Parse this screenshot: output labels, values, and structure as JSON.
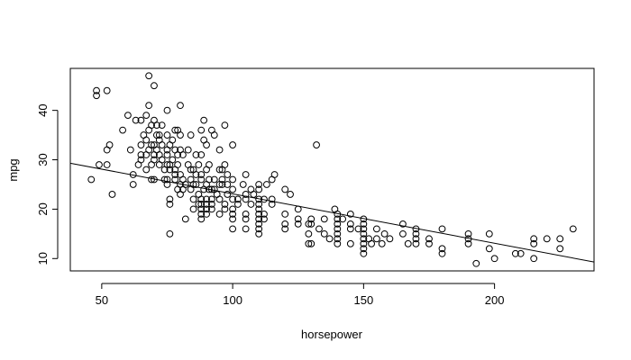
{
  "chart_data": {
    "type": "scatter",
    "title": "",
    "xlabel": "horsepower",
    "ylabel": "mpg",
    "xlim": [
      38,
      238
    ],
    "ylim": [
      7.5,
      48.5
    ],
    "xticks": [
      50,
      100,
      150,
      200
    ],
    "yticks": [
      10,
      20,
      30,
      40
    ],
    "grid": false,
    "legend": "none",
    "marker": "open-circle",
    "regression_line": {
      "x": [
        38,
        238
      ],
      "y": [
        29.3,
        9.3
      ]
    },
    "points": [
      [
        46,
        26
      ],
      [
        48,
        43
      ],
      [
        48,
        44
      ],
      [
        49,
        29
      ],
      [
        52,
        44
      ],
      [
        52,
        29
      ],
      [
        52,
        32
      ],
      [
        53,
        33
      ],
      [
        54,
        23
      ],
      [
        58,
        36
      ],
      [
        60,
        39
      ],
      [
        61,
        32
      ],
      [
        62,
        27
      ],
      [
        62,
        25
      ],
      [
        63,
        38
      ],
      [
        64,
        29
      ],
      [
        65,
        33
      ],
      [
        65,
        38
      ],
      [
        65,
        31
      ],
      [
        65,
        30
      ],
      [
        66,
        35
      ],
      [
        67,
        39
      ],
      [
        67,
        31
      ],
      [
        67,
        28
      ],
      [
        67,
        34
      ],
      [
        68,
        47
      ],
      [
        68,
        41
      ],
      [
        68,
        32
      ],
      [
        68,
        36
      ],
      [
        69,
        29
      ],
      [
        69,
        37
      ],
      [
        69,
        33
      ],
      [
        69,
        26
      ],
      [
        70,
        45
      ],
      [
        70,
        38
      ],
      [
        70,
        33
      ],
      [
        70,
        30
      ],
      [
        70,
        26
      ],
      [
        70,
        31
      ],
      [
        71,
        35
      ],
      [
        71,
        37
      ],
      [
        71,
        32
      ],
      [
        72,
        35
      ],
      [
        72,
        29
      ],
      [
        72,
        34
      ],
      [
        72,
        31
      ],
      [
        73,
        37
      ],
      [
        73,
        33
      ],
      [
        73,
        30
      ],
      [
        74,
        26
      ],
      [
        74,
        28
      ],
      [
        75,
        32
      ],
      [
        75,
        29
      ],
      [
        75,
        35
      ],
      [
        75,
        31
      ],
      [
        75,
        40
      ],
      [
        75,
        26
      ],
      [
        75,
        25
      ],
      [
        76,
        22
      ],
      [
        76,
        21
      ],
      [
        76,
        15
      ],
      [
        76,
        28
      ],
      [
        76,
        29
      ],
      [
        76,
        33
      ],
      [
        77,
        30
      ],
      [
        77,
        34
      ],
      [
        78,
        32
      ],
      [
        78,
        27
      ],
      [
        78,
        36
      ],
      [
        78,
        28
      ],
      [
        78,
        26
      ],
      [
        79,
        31
      ],
      [
        79,
        36
      ],
      [
        79,
        29
      ],
      [
        79,
        24
      ],
      [
        80,
        41
      ],
      [
        80,
        35
      ],
      [
        80,
        32
      ],
      [
        80,
        27
      ],
      [
        80,
        23
      ],
      [
        80,
        25
      ],
      [
        81,
        31
      ],
      [
        81,
        26
      ],
      [
        81,
        24
      ],
      [
        82,
        18
      ],
      [
        82,
        25
      ],
      [
        83,
        32
      ],
      [
        83,
        29
      ],
      [
        84,
        28
      ],
      [
        84,
        26
      ],
      [
        84,
        24
      ],
      [
        84,
        35
      ],
      [
        85,
        28
      ],
      [
        85,
        25
      ],
      [
        85,
        22
      ],
      [
        85,
        20
      ],
      [
        86,
        27
      ],
      [
        86,
        31
      ],
      [
        86,
        25
      ],
      [
        87,
        29
      ],
      [
        87,
        23
      ],
      [
        87,
        21
      ],
      [
        88,
        36
      ],
      [
        88,
        31
      ],
      [
        88,
        26
      ],
      [
        88,
        21
      ],
      [
        88,
        18
      ],
      [
        88,
        20
      ],
      [
        88,
        22
      ],
      [
        88,
        19
      ],
      [
        88,
        27
      ],
      [
        89,
        38
      ],
      [
        89,
        34
      ],
      [
        89,
        24
      ],
      [
        90,
        25
      ],
      [
        90,
        28
      ],
      [
        90,
        33
      ],
      [
        90,
        22
      ],
      [
        90,
        21
      ],
      [
        90,
        19
      ],
      [
        90,
        20
      ],
      [
        91,
        26
      ],
      [
        91,
        24
      ],
      [
        91,
        29
      ],
      [
        92,
        36
      ],
      [
        92,
        22
      ],
      [
        92,
        24
      ],
      [
        92,
        21
      ],
      [
        92,
        20
      ],
      [
        93,
        35
      ],
      [
        93,
        26
      ],
      [
        93,
        24
      ],
      [
        94,
        23
      ],
      [
        95,
        25
      ],
      [
        95,
        19
      ],
      [
        95,
        28
      ],
      [
        95,
        22
      ],
      [
        95,
        32
      ],
      [
        96,
        28
      ],
      [
        96,
        26
      ],
      [
        96,
        25
      ],
      [
        97,
        37
      ],
      [
        97,
        29
      ],
      [
        97,
        21
      ],
      [
        97,
        20
      ],
      [
        98,
        27
      ],
      [
        98,
        23
      ],
      [
        98,
        25
      ],
      [
        100,
        26
      ],
      [
        100,
        24
      ],
      [
        100,
        22
      ],
      [
        100,
        18
      ],
      [
        100,
        20
      ],
      [
        100,
        19
      ],
      [
        100,
        16
      ],
      [
        100,
        33
      ],
      [
        102,
        22
      ],
      [
        102,
        21
      ],
      [
        104,
        25
      ],
      [
        105,
        27
      ],
      [
        105,
        22
      ],
      [
        105,
        23
      ],
      [
        105,
        19
      ],
      [
        105,
        18
      ],
      [
        105,
        16
      ],
      [
        107,
        24
      ],
      [
        107,
        21
      ],
      [
        108,
        23
      ],
      [
        110,
        22
      ],
      [
        110,
        21
      ],
      [
        110,
        20
      ],
      [
        110,
        19
      ],
      [
        110,
        18
      ],
      [
        110,
        17
      ],
      [
        110,
        16
      ],
      [
        110,
        15
      ],
      [
        110,
        24
      ],
      [
        110,
        25
      ],
      [
        112,
        22
      ],
      [
        112,
        19
      ],
      [
        112,
        18
      ],
      [
        113,
        25
      ],
      [
        115,
        26
      ],
      [
        115,
        22
      ],
      [
        115,
        21
      ],
      [
        116,
        27
      ],
      [
        120,
        24
      ],
      [
        120,
        19
      ],
      [
        120,
        17
      ],
      [
        120,
        16
      ],
      [
        122,
        23
      ],
      [
        125,
        20
      ],
      [
        125,
        18
      ],
      [
        125,
        17
      ],
      [
        129,
        17
      ],
      [
        129,
        15
      ],
      [
        129,
        13
      ],
      [
        130,
        18
      ],
      [
        130,
        17
      ],
      [
        130,
        13
      ],
      [
        132,
        33
      ],
      [
        133,
        16
      ],
      [
        135,
        18
      ],
      [
        135,
        15
      ],
      [
        137,
        14
      ],
      [
        139,
        20
      ],
      [
        140,
        19
      ],
      [
        140,
        18
      ],
      [
        140,
        17
      ],
      [
        140,
        16
      ],
      [
        140,
        15
      ],
      [
        140,
        14
      ],
      [
        140,
        13
      ],
      [
        142,
        18
      ],
      [
        145,
        19
      ],
      [
        145,
        17
      ],
      [
        145,
        16
      ],
      [
        145,
        13
      ],
      [
        148,
        16
      ],
      [
        150,
        18
      ],
      [
        150,
        17
      ],
      [
        150,
        16
      ],
      [
        150,
        15
      ],
      [
        150,
        14
      ],
      [
        150,
        13
      ],
      [
        150,
        12
      ],
      [
        150,
        11
      ],
      [
        152,
        14
      ],
      [
        153,
        13
      ],
      [
        155,
        16
      ],
      [
        155,
        14
      ],
      [
        157,
        13
      ],
      [
        158,
        15
      ],
      [
        160,
        14
      ],
      [
        165,
        17
      ],
      [
        165,
        15
      ],
      [
        167,
        13
      ],
      [
        170,
        16
      ],
      [
        170,
        15
      ],
      [
        170,
        14
      ],
      [
        170,
        13
      ],
      [
        175,
        14
      ],
      [
        175,
        13
      ],
      [
        180,
        16
      ],
      [
        180,
        12
      ],
      [
        180,
        11
      ],
      [
        190,
        15
      ],
      [
        190,
        14
      ],
      [
        190,
        13
      ],
      [
        193,
        9
      ],
      [
        198,
        15
      ],
      [
        198,
        12
      ],
      [
        200,
        10
      ],
      [
        208,
        11
      ],
      [
        210,
        11
      ],
      [
        215,
        14
      ],
      [
        215,
        13
      ],
      [
        215,
        10
      ],
      [
        220,
        14
      ],
      [
        225,
        14
      ],
      [
        225,
        12
      ],
      [
        230,
        16
      ]
    ]
  }
}
